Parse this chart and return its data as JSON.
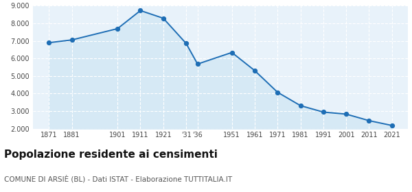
{
  "years": [
    1871,
    1881,
    1901,
    1911,
    1921,
    1931,
    1936,
    1951,
    1961,
    1971,
    1981,
    1991,
    2001,
    2011,
    2021
  ],
  "population": [
    6897,
    7054,
    7697,
    8727,
    8290,
    6854,
    5680,
    6339,
    5307,
    4072,
    3312,
    2944,
    2827,
    2457,
    2181
  ],
  "x_tick_years": [
    1871,
    1881,
    1901,
    1911,
    1921,
    1931,
    1936,
    1951,
    1961,
    1971,
    1981,
    1991,
    2001,
    2011,
    2021
  ],
  "x_labels": [
    "1871",
    "1881",
    "1901",
    "1911",
    "1921",
    "'31",
    "'36",
    "1951",
    "1961",
    "1971",
    "1981",
    "1991",
    "2001",
    "2011",
    "2021"
  ],
  "xlim": [
    1864,
    2028
  ],
  "ylim": [
    2000,
    9000
  ],
  "yticks": [
    2000,
    3000,
    4000,
    5000,
    6000,
    7000,
    8000,
    9000
  ],
  "line_color": "#1e6eb5",
  "fill_color": "#d6e9f5",
  "marker_color": "#1e6eb5",
  "bg_color": "#e8f2fa",
  "grid_color": "#ffffff",
  "title": "Popolazione residente ai censimenti",
  "subtitle": "COMUNE DI ARSIÈ (BL) - Dati ISTAT - Elaborazione TUTTITALIA.IT",
  "title_fontsize": 11,
  "subtitle_fontsize": 7.5
}
